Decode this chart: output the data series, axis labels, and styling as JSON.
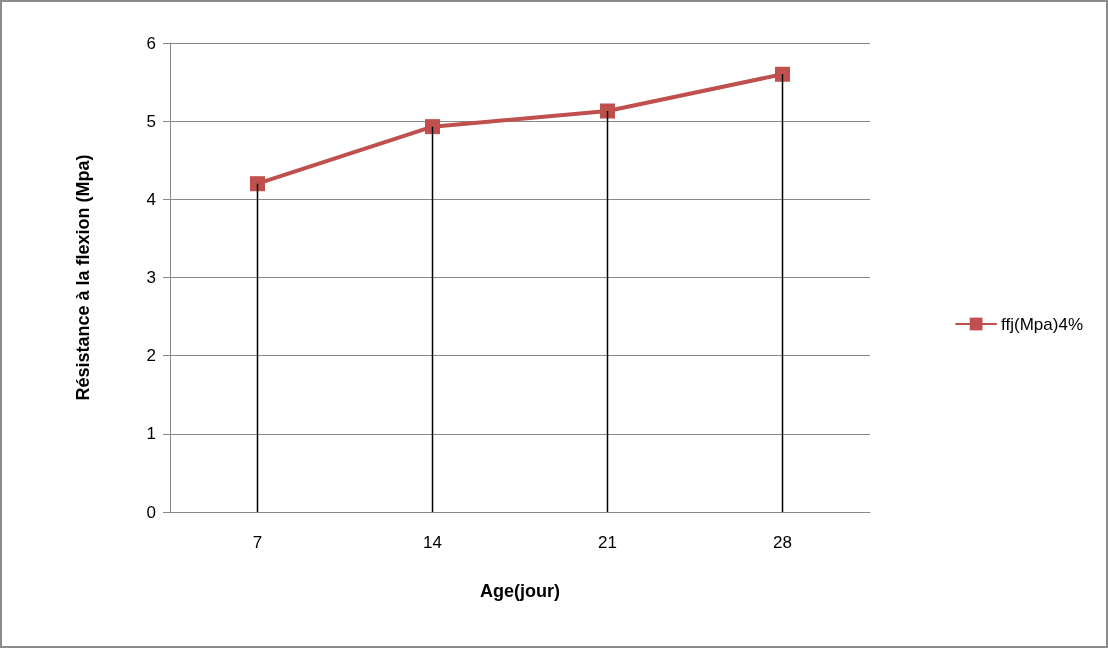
{
  "chart_data": {
    "type": "line",
    "xlabel": "Age(jour)",
    "ylabel": "Résistance à la flexion (Mpa)",
    "categories": [
      "7",
      "14",
      "21",
      "28"
    ],
    "series": [
      {
        "type": "bar",
        "color": "#000000",
        "values": [
          4.2,
          4.93,
          5.13,
          5.6
        ]
      },
      {
        "name": "ffj(Mpa)4%",
        "color": "#c0504d",
        "values": [
          4.2,
          4.93,
          5.13,
          5.6
        ]
      }
    ],
    "ylim": [
      0,
      6
    ],
    "yticks": [
      0,
      1,
      2,
      3,
      4,
      5,
      6
    ],
    "grid": "y",
    "legend": "right",
    "marker": "square",
    "line_style": "solid"
  }
}
